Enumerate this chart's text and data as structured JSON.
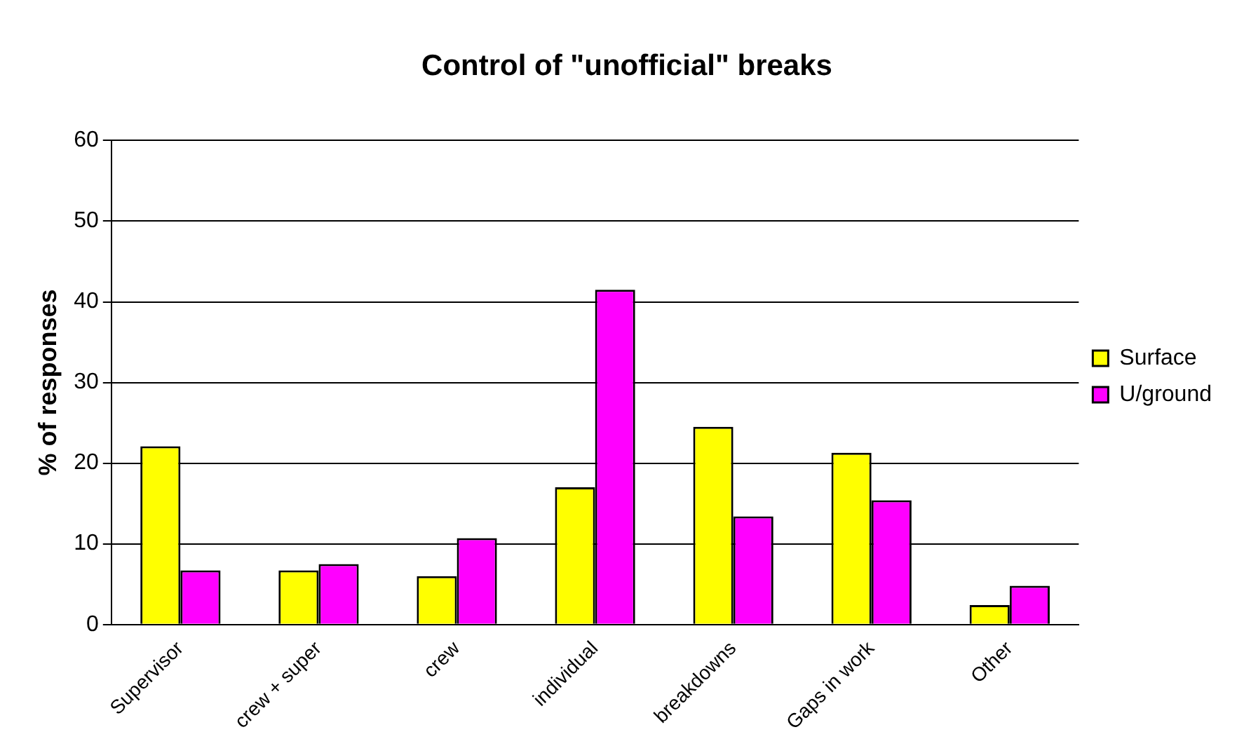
{
  "chart_data": {
    "type": "bar",
    "title": "Control of \"unofficial\" breaks",
    "ylabel": "% of responses",
    "categories": [
      "Supervisor",
      "crew + super",
      "crew",
      "individual",
      "breakdowns",
      "Gaps in work",
      "Other"
    ],
    "series": [
      {
        "name": "Surface",
        "color": "#ffff00",
        "values": [
          22.1,
          6.7,
          6.0,
          17.0,
          24.5,
          21.3,
          2.4
        ]
      },
      {
        "name": "U/ground",
        "color": "#ff00ff",
        "values": [
          6.7,
          7.5,
          10.7,
          41.5,
          13.4,
          15.4,
          4.8
        ]
      }
    ],
    "ylim": [
      0,
      60
    ],
    "yticks": [
      0,
      10,
      20,
      30,
      40,
      50,
      60
    ],
    "grid": "y",
    "legend": "right"
  }
}
